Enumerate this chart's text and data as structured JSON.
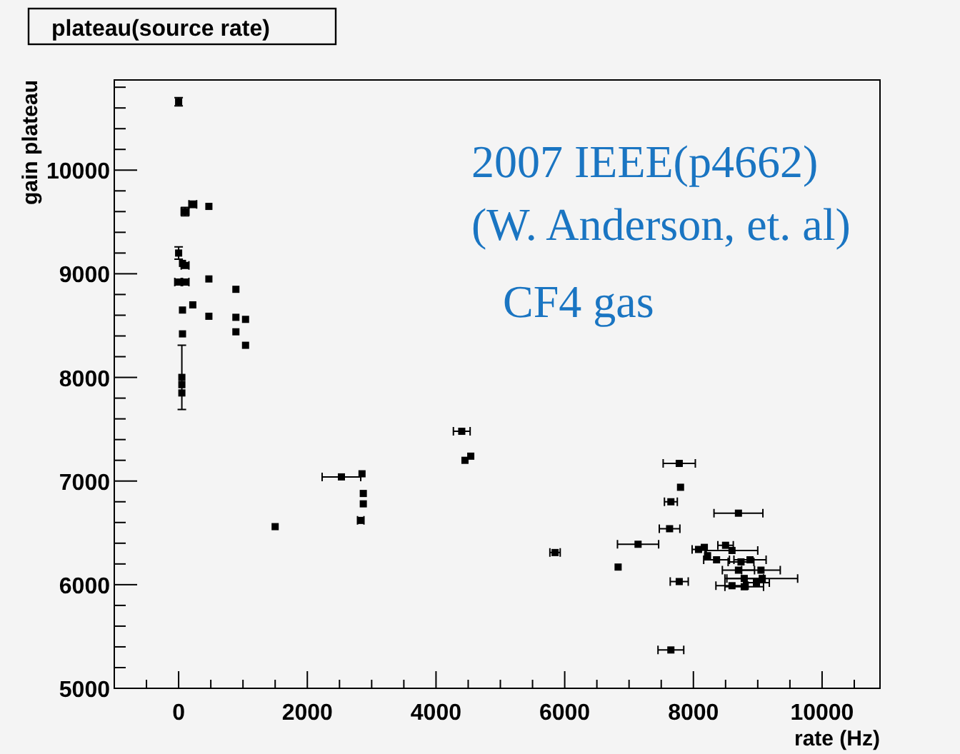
{
  "chart_data": {
    "type": "scatter",
    "title": "plateau(source rate)",
    "xlabel": "rate (Hz)",
    "ylabel": "gain plateau",
    "annotations": [
      "2007 IEEE(p4662)",
      "(W. Anderson, et. al)",
      "CF4 gas"
    ],
    "xlim": [
      -1000,
      10900
    ],
    "ylim": [
      5000,
      10870
    ],
    "xticks": [
      {
        "value": -500,
        "label": null
      },
      0,
      {
        "value": 500,
        "label": null
      },
      {
        "value": 1000,
        "label": null
      },
      {
        "value": 1500,
        "label": null
      },
      2000,
      {
        "value": 2500,
        "label": null
      },
      {
        "value": 3000,
        "label": null
      },
      {
        "value": 3500,
        "label": null
      },
      4000,
      {
        "value": 4500,
        "label": null
      },
      {
        "value": 5000,
        "label": null
      },
      {
        "value": 5500,
        "label": null
      },
      6000,
      {
        "value": 6500,
        "label": null
      },
      {
        "value": 7000,
        "label": null
      },
      {
        "value": 7500,
        "label": null
      },
      8000,
      {
        "value": 8500,
        "label": null
      },
      {
        "value": 9000,
        "label": null
      },
      {
        "value": 9500,
        "label": null
      },
      10000,
      {
        "value": 10500,
        "label": null
      }
    ],
    "yticks": [
      5000,
      {
        "value": 5200,
        "label": null
      },
      {
        "value": 5400,
        "label": null
      },
      {
        "value": 5600,
        "label": null
      },
      {
        "value": 5800,
        "label": null
      },
      6000,
      {
        "value": 6200,
        "label": null
      },
      {
        "value": 6400,
        "label": null
      },
      {
        "value": 6600,
        "label": null
      },
      {
        "value": 6800,
        "label": null
      },
      7000,
      {
        "value": 7200,
        "label": null
      },
      {
        "value": 7400,
        "label": null
      },
      {
        "value": 7600,
        "label": null
      },
      {
        "value": 7800,
        "label": null
      },
      8000,
      {
        "value": 8200,
        "label": null
      },
      {
        "value": 8400,
        "label": null
      },
      {
        "value": 8600,
        "label": null
      },
      {
        "value": 8800,
        "label": null
      },
      9000,
      {
        "value": 9200,
        "label": null
      },
      {
        "value": 9400,
        "label": null
      },
      {
        "value": 9600,
        "label": null
      },
      {
        "value": 9800,
        "label": null
      },
      10000,
      {
        "value": 10200,
        "label": null
      },
      {
        "value": 10400,
        "label": null
      },
      {
        "value": 10600,
        "label": null
      },
      {
        "value": 10800,
        "label": null
      }
    ],
    "grid": false,
    "marker": "square",
    "series": [
      {
        "color": "#000000",
        "x": [
          0,
          100,
          220,
          470,
          0,
          60,
          100,
          0,
          100,
          470,
          890,
          60,
          220,
          470,
          890,
          1040,
          890,
          60,
          1040,
          50,
          50,
          50,
          1500,
          2530,
          2850,
          2870,
          2870,
          2830,
          4400,
          4450,
          4540,
          5850,
          6830,
          7140,
          7780,
          7800,
          7650,
          7630,
          8700,
          7650,
          7780,
          8080,
          8220,
          8170,
          8500,
          8360,
          8600,
          8740,
          8880,
          8700,
          9050,
          8790,
          9070,
          8600,
          8790,
          8980
        ],
        "values": [
          10660,
          9600,
          9670,
          9650,
          9200,
          9100,
          9080,
          8920,
          8920,
          8950,
          8850,
          8650,
          8700,
          8590,
          8580,
          8560,
          8440,
          8420,
          8310,
          8000,
          7930,
          7850,
          6560,
          7040,
          7070,
          6880,
          6780,
          6620,
          7480,
          7200,
          7240,
          6310,
          6170,
          6390,
          7170,
          6940,
          6800,
          6540,
          6690,
          5370,
          6030,
          6340,
          6280,
          6360,
          6380,
          6240,
          6330,
          6220,
          6240,
          6140,
          6140,
          6060,
          6060,
          5990,
          5980,
          6020
        ],
        "errors": [
          40,
          40,
          30,
          null,
          60,
          null,
          null,
          null,
          null,
          null,
          null,
          null,
          null,
          null,
          null,
          null,
          null,
          null,
          null,
          310,
          null,
          null,
          null,
          null,
          null,
          null,
          null,
          null,
          null,
          null,
          null,
          null,
          null,
          null,
          null,
          null,
          null,
          null,
          null,
          null,
          null,
          null,
          null,
          null,
          null,
          null,
          null,
          null,
          null,
          null,
          null,
          null,
          null,
          null,
          null,
          null
        ],
        "xerrors": [
          null,
          60,
          60,
          null,
          null,
          null,
          60,
          60,
          60,
          null,
          null,
          null,
          null,
          null,
          null,
          null,
          null,
          null,
          null,
          null,
          null,
          null,
          null,
          300,
          null,
          null,
          null,
          50,
          130,
          null,
          null,
          80,
          null,
          320,
          250,
          null,
          100,
          160,
          380,
          200,
          140,
          100,
          null,
          null,
          120,
          200,
          400,
          200,
          250,
          250,
          300,
          300,
          550,
          250,
          300,
          200
        ]
      }
    ]
  }
}
